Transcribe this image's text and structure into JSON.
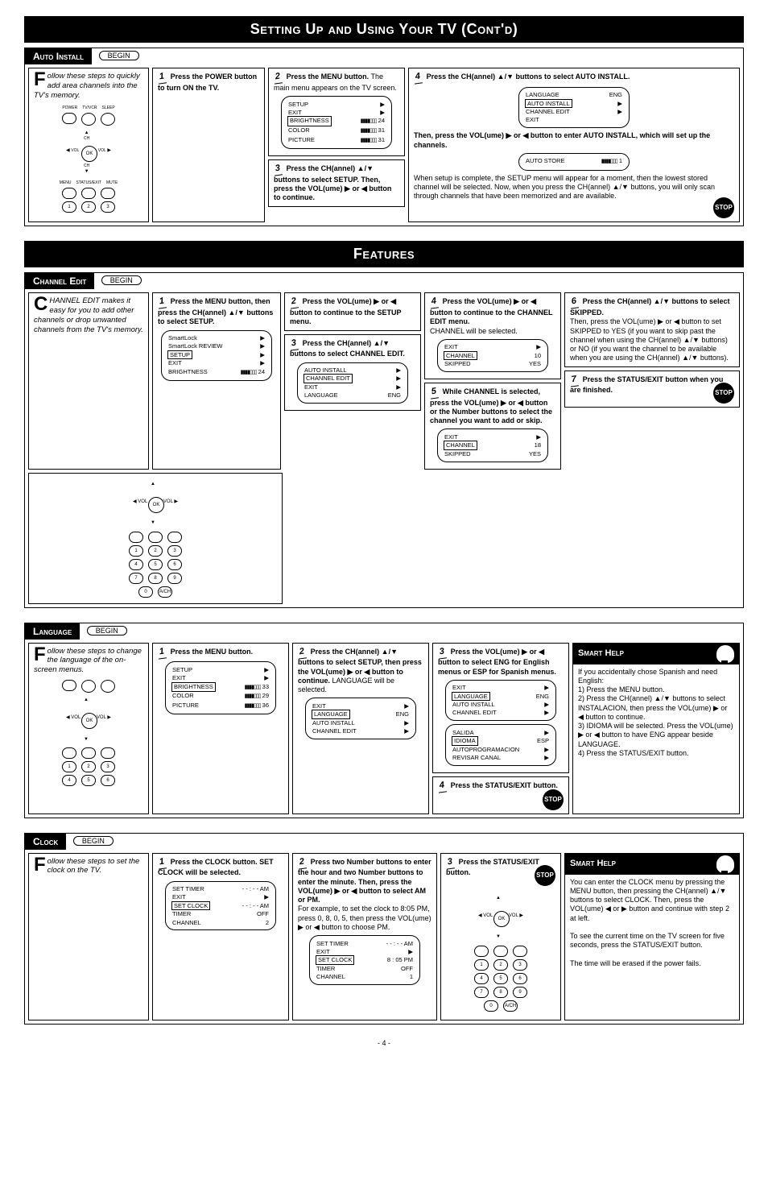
{
  "banners": {
    "main": "Setting Up and Using Your TV (Cont'd)",
    "features": "Features"
  },
  "begin_label": "BEGIN",
  "stop_label": "STOP",
  "page_number": "- 4 -",
  "auto_install": {
    "title": "Auto Install",
    "intro_dropcap": "F",
    "intro": "ollow these steps to quickly add area channels into the TV's memory.",
    "remote_labels": {
      "power": "POWER",
      "tvvcr": "TV/VCR",
      "sleep": "SLEEP",
      "menu": "MENU",
      "status": "STATUS/EXIT",
      "mute": "MUTE",
      "ch": "CH",
      "vol": "VOL",
      "ok": "OK"
    },
    "step1_num": "1",
    "step1": "Press the POWER button to turn ON the TV.",
    "step2_num": "2",
    "step2_head": "Press the MENU button.",
    "step2_body": "The main menu appears on the TV screen.",
    "menu2": {
      "items": [
        [
          "SETUP",
          "▶"
        ],
        [
          "EXIT",
          "▶"
        ],
        [
          "BRIGHTNESS",
          "bars 24",
          true
        ],
        [
          "COLOR",
          "bars 31"
        ],
        [
          "PICTURE",
          "bars 31"
        ]
      ]
    },
    "step3_num": "3",
    "step3": "Press the CH(annel) ▲/▼ buttons to select SETUP. Then, press the VOL(ume) ▶ or ◀ button to continue.",
    "step4_num": "4",
    "step4_head": "Press the CH(annel) ▲/▼ buttons to select AUTO INSTALL.",
    "menu4a": {
      "items": [
        [
          "LANGUAGE",
          "ENG"
        ],
        [
          "AUTO INSTALL",
          "▶",
          true
        ],
        [
          "CHANNEL EDIT",
          "▶"
        ],
        [
          "EXIT",
          ""
        ]
      ]
    },
    "step4_mid": "Then, press the VOL(ume) ▶ or ◀ button to enter AUTO INSTALL, which will set up the channels.",
    "menu4b": {
      "items": [
        [
          "AUTO STORE",
          "bars 1"
        ]
      ]
    },
    "step4_end": "When setup is complete, the SETUP menu will appear for a moment, then the lowest stored channel will be selected. Now, when you press the CH(annel) ▲/▼ buttons, you will only scan through channels that have been memorized and are available."
  },
  "channel_edit": {
    "title": "Channel Edit",
    "intro_dropcap": "C",
    "intro": "HANNEL EDIT makes it easy for you to add other channels or drop unwanted channels from the TV's memory.",
    "step1_num": "1",
    "step1": "Press the MENU button, then press the CH(annel) ▲/▼ buttons to select SETUP.",
    "menu1": {
      "items": [
        [
          "SmartLock",
          "▶"
        ],
        [
          "SmartLock REVIEW",
          "▶"
        ],
        [
          "SETUP",
          "▶",
          true
        ],
        [
          "EXIT",
          "▶"
        ],
        [
          "BRIGHTNESS",
          "bars 24"
        ]
      ]
    },
    "step2_num": "2",
    "step2": "Press the VOL(ume) ▶ or ◀ button to continue to the SETUP menu.",
    "step3_num": "3",
    "step3": "Press the CH(annel) ▲/▼ buttons to select CHANNEL EDIT.",
    "menu3": {
      "items": [
        [
          "AUTO INSTALL",
          "▶"
        ],
        [
          "CHANNEL EDIT",
          "▶",
          true
        ],
        [
          "EXIT",
          "▶"
        ],
        [
          "LANGUAGE",
          "ENG"
        ]
      ]
    },
    "step4_num": "4",
    "step4": "Press the VOL(ume) ▶ or ◀ button to continue to the CHANNEL EDIT menu.",
    "step4_note": "CHANNEL will be selected.",
    "menu4": {
      "items": [
        [
          "EXIT",
          "▶"
        ],
        [
          "CHANNEL",
          "10",
          true
        ],
        [
          "SKIPPED",
          "YES"
        ]
      ]
    },
    "step5_num": "5",
    "step5": "While CHANNEL is selected, press the VOL(ume) ▶ or ◀ button or the Number buttons to select the channel you want to add or skip.",
    "menu5": {
      "items": [
        [
          "EXIT",
          "▶"
        ],
        [
          "CHANNEL",
          "18",
          true
        ],
        [
          "SKIPPED",
          "YES"
        ]
      ]
    },
    "step6_num": "6",
    "step6": "Press the CH(annel) ▲/▼ buttons to select SKIPPED.",
    "step6_body": "Then, press the VOL(ume) ▶ or ◀ button to set SKIPPED to YES (if you want to skip past the channel when using the CH(annel) ▲/▼ buttons) or NO (if you want the channel to be available when you are using the CH(annel) ▲/▼ buttons).",
    "step7_num": "7",
    "step7": "Press the STATUS/EXIT button when you are finished."
  },
  "language": {
    "title": "Language",
    "intro_dropcap": "F",
    "intro": "ollow these steps to change the language of the on-screen menus.",
    "step1_num": "1",
    "step1": "Press the MENU button.",
    "menu1": {
      "items": [
        [
          "SETUP",
          "▶"
        ],
        [
          "EXIT",
          "▶"
        ],
        [
          "BRIGHTNESS",
          "bars 33",
          true
        ],
        [
          "COLOR",
          "bars 29"
        ],
        [
          "PICTURE",
          "bars 36"
        ]
      ]
    },
    "step2_num": "2",
    "step2": "Press the CH(annel) ▲/▼ buttons to select SETUP, then press the VOL(ume) ▶ or ◀ button to continue.",
    "step2_note": "LANGUAGE will be selected.",
    "menu2": {
      "items": [
        [
          "EXIT",
          "▶"
        ],
        [
          "LANGUAGE",
          "ENG",
          true
        ],
        [
          "AUTO INSTALL",
          "▶"
        ],
        [
          "CHANNEL EDIT",
          "▶"
        ]
      ]
    },
    "step3_num": "3",
    "step3": "Press the VOL(ume) ▶ or ◀ button to select ENG for English menus or ESP for Spanish menus.",
    "menu3a": {
      "items": [
        [
          "EXIT",
          "▶"
        ],
        [
          "LANGUAGE",
          "ENG",
          true
        ],
        [
          "AUTO INSTALL",
          "▶"
        ],
        [
          "CHANNEL EDIT",
          "▶"
        ]
      ]
    },
    "menu3b": {
      "items": [
        [
          "SALIDA",
          "▶"
        ],
        [
          "IDIOMA",
          "ESP",
          true
        ],
        [
          "AUTOPROGRAMACION",
          "▶"
        ],
        [
          "REVISAR CANAL",
          "▶"
        ]
      ]
    },
    "step4_num": "4",
    "step4": "Press the STATUS/EXIT button.",
    "smart_title": "Smart Help",
    "smart_body": "If you accidentally chose Spanish and need English:\n1) Press the MENU button.\n2) Press the CH(annel) ▲/▼ buttons to select INSTALACION, then press the VOL(ume) ▶ or ◀ button to continue.\n3) IDIOMA will be selected. Press the VOL(ume) ▶ or ◀ button to have ENG appear beside LANGUAGE.\n4) Press the STATUS/EXIT button."
  },
  "clock": {
    "title": "Clock",
    "intro_dropcap": "F",
    "intro": "ollow these steps to set the clock on the TV.",
    "step1_num": "1",
    "step1": "Press the CLOCK button. SET CLOCK will be selected.",
    "menu1": {
      "items": [
        [
          "SET TIMER",
          "- - : - - AM"
        ],
        [
          "EXIT",
          "▶"
        ],
        [
          "SET CLOCK",
          "- - : - - AM",
          true
        ],
        [
          "TIMER",
          "OFF"
        ],
        [
          "CHANNEL",
          "2"
        ]
      ]
    },
    "step2_num": "2",
    "step2": "Press two Number buttons to enter the hour and two Number buttons to enter the minute. Then, press the VOL(ume) ▶ or ◀ button to select AM or PM.",
    "step2_example": "For example, to set the clock to 8:05 PM, press 0, 8, 0, 5, then press the VOL(ume) ▶ or ◀ button to choose PM.",
    "menu2": {
      "items": [
        [
          "SET TIMER",
          "- - : - - AM"
        ],
        [
          "EXIT",
          "▶"
        ],
        [
          "SET CLOCK",
          "8 : 05 PM",
          true
        ],
        [
          "TIMER",
          "OFF"
        ],
        [
          "CHANNEL",
          "1"
        ]
      ]
    },
    "step3_num": "3",
    "step3": "Press the STATUS/EXIT button.",
    "smart_title": "Smart Help",
    "smart_body": "You can enter the CLOCK menu by pressing the MENU button, then pressing the CH(annel) ▲/▼ buttons to select CLOCK. Then, press the VOL(ume) ◀ or ▶ button and continue with step 2 at left.\n\nTo see the current time on the TV screen for five seconds, press the STATUS/EXIT button.\n\nThe time will be erased if the power fails."
  }
}
